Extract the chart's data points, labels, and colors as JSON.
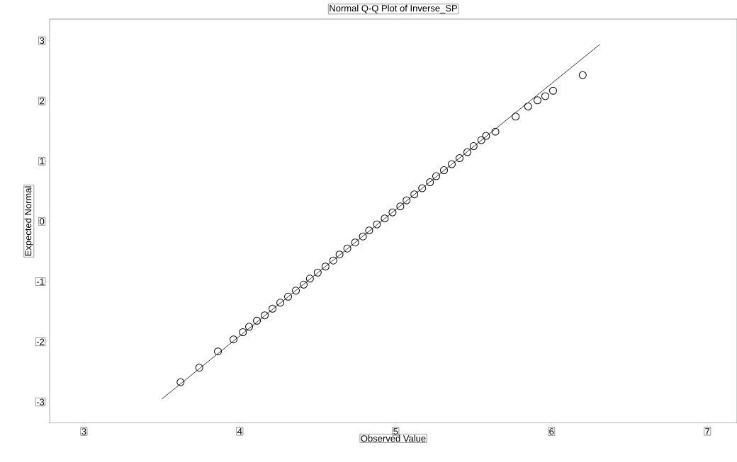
{
  "chart_data": {
    "type": "scatter",
    "title": "Normal Q-Q Plot of Inverse_SP",
    "xlabel": "Observed Value",
    "ylabel": "Expected Normal",
    "xlim": [
      2.78,
      7.19
    ],
    "ylim": [
      -3.35,
      3.36
    ],
    "xticks": [
      3,
      4,
      5,
      6,
      7
    ],
    "yticks": [
      -3,
      -2,
      -1,
      0,
      1,
      2,
      3
    ],
    "marker": "circle",
    "grid": false,
    "series": [
      {
        "color": "#000000",
        "x": [
          3.62,
          3.74,
          3.86,
          3.96,
          4.02,
          4.06,
          4.11,
          4.16,
          4.21,
          4.26,
          4.31,
          4.36,
          4.41,
          4.45,
          4.5,
          4.55,
          4.6,
          4.64,
          4.69,
          4.74,
          4.79,
          4.83,
          4.88,
          4.93,
          4.98,
          5.03,
          5.07,
          5.12,
          5.17,
          5.22,
          5.26,
          5.31,
          5.36,
          5.41,
          5.46,
          5.5,
          5.55,
          5.58,
          5.64,
          5.77,
          5.85,
          5.91,
          5.96,
          6.01,
          6.2
        ],
        "values": [
          -2.67,
          -2.43,
          -2.16,
          -1.96,
          -1.84,
          -1.75,
          -1.65,
          -1.56,
          -1.45,
          -1.35,
          -1.25,
          -1.15,
          -1.05,
          -0.95,
          -0.85,
          -0.75,
          -0.65,
          -0.55,
          -0.45,
          -0.35,
          -0.25,
          -0.15,
          -0.05,
          0.05,
          0.15,
          0.25,
          0.35,
          0.45,
          0.55,
          0.65,
          0.75,
          0.85,
          0.95,
          1.05,
          1.15,
          1.25,
          1.35,
          1.42,
          1.49,
          1.74,
          1.91,
          2.01,
          2.08,
          2.17,
          2.43
        ]
      },
      {
        "type": "line",
        "color": "#000000",
        "marker": "none",
        "line_style": "solid",
        "x": [
          3.5,
          6.31
        ],
        "values": [
          -2.95,
          2.94
        ]
      }
    ]
  }
}
